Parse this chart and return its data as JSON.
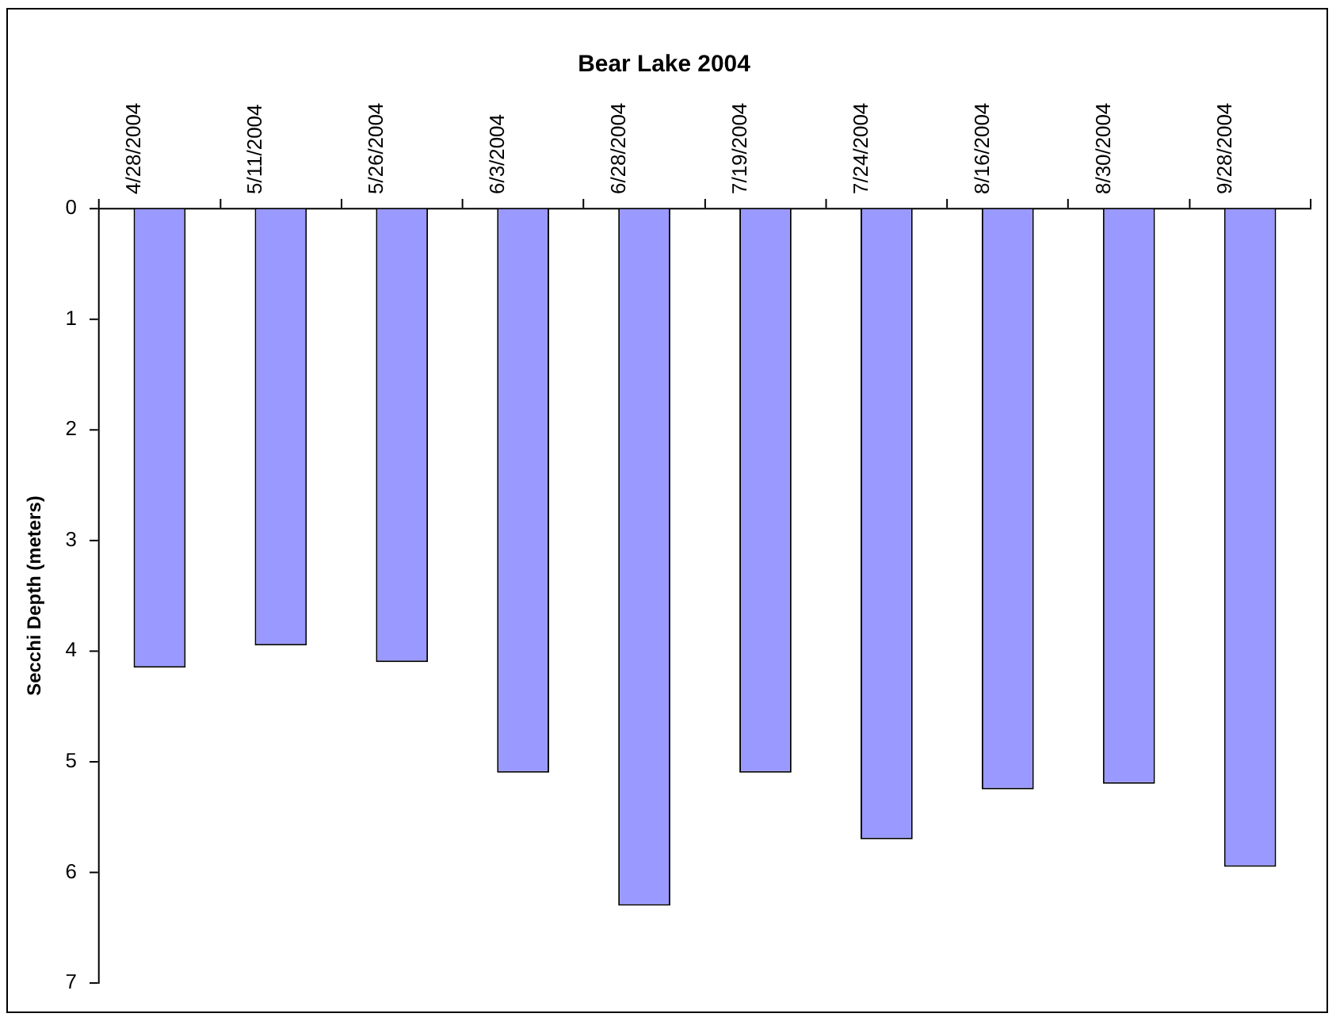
{
  "chart_data": {
    "type": "bar",
    "title": "Bear Lake 2004",
    "ylabel": "Secchi Depth (meters)",
    "categories": [
      "4/28/2004",
      "5/11/2004",
      "5/26/2004",
      "6/3/2004",
      "6/28/2004",
      "7/19/2004",
      "7/24/2004",
      "8/16/2004",
      "8/30/2004",
      "9/28/2004"
    ],
    "values": [
      4.15,
      3.95,
      4.1,
      5.1,
      6.3,
      5.1,
      5.7,
      5.25,
      5.2,
      5.95
    ],
    "color": "#9999ff",
    "ylim": [
      7,
      0
    ],
    "yticks": [
      0,
      1,
      2,
      3,
      4,
      5,
      6,
      7
    ]
  }
}
